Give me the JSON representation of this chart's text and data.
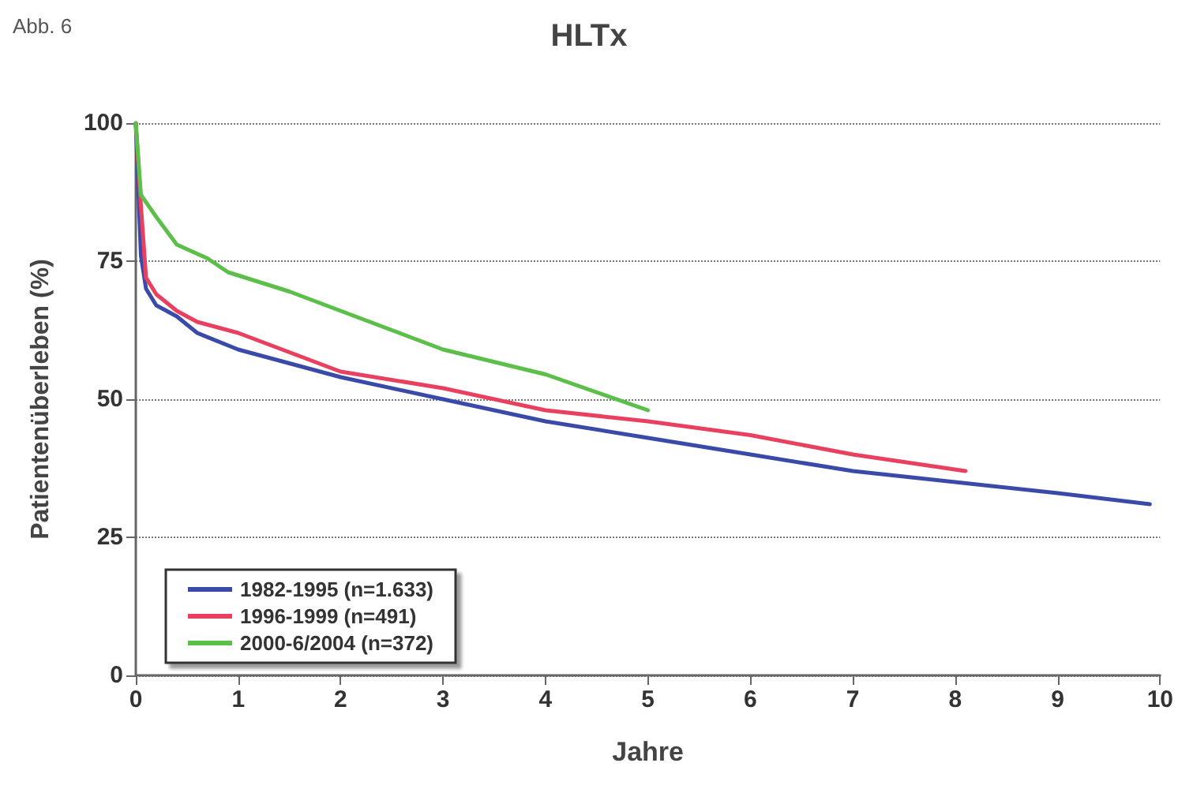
{
  "chart_data": {
    "type": "line",
    "title": "HLTx",
    "annotations": [
      "Abb. 6"
    ],
    "xlabel": "Jahre",
    "ylabel": "Patientenüberleben (%)",
    "xlim": [
      0,
      10
    ],
    "xticks": [
      0,
      1,
      2,
      3,
      4,
      5,
      6,
      7,
      8,
      9,
      10
    ],
    "ylim": [
      0,
      100
    ],
    "yticks": [
      0,
      25,
      50,
      75,
      100
    ],
    "grid": "y",
    "legend": "bottom left",
    "marker": "none",
    "line_style": "solid",
    "series": [
      {
        "name": "1982-1995 (n=1.633)",
        "color": "#3a4aa8",
        "x": [
          0,
          0.05,
          0.1,
          0.2,
          0.4,
          0.6,
          1,
          2,
          3,
          4,
          5,
          6,
          7,
          8,
          9,
          9.9
        ],
        "values": [
          100,
          76,
          70,
          67,
          65,
          62,
          59,
          54,
          50,
          46,
          43,
          40,
          37,
          35,
          33,
          31
        ]
      },
      {
        "name": "1996-1999 (n=491)",
        "color": "#e8405e",
        "x": [
          0,
          0.05,
          0.1,
          0.2,
          0.4,
          0.6,
          1,
          2,
          3,
          4,
          5,
          6,
          7,
          8.1
        ],
        "values": [
          100,
          85,
          72,
          69,
          66,
          64,
          62,
          55,
          52,
          48,
          46,
          43.5,
          40,
          37
        ]
      },
      {
        "name": "2000-6/2004 (n=372)",
        "color": "#5cbf4a",
        "x": [
          0,
          0.05,
          0.2,
          0.4,
          0.7,
          0.9,
          1.5,
          2,
          3,
          4,
          5
        ],
        "values": [
          100,
          87,
          83,
          78,
          75.5,
          73,
          69.5,
          66,
          59,
          54.5,
          48
        ]
      }
    ]
  }
}
